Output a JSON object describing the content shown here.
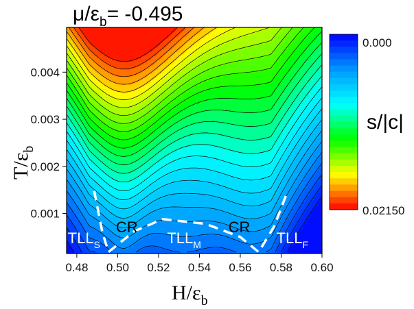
{
  "chart_data": {
    "type": "heatmap",
    "title": {
      "symbol": "μ/ε",
      "subscript": "b",
      "value": "= -0.495"
    },
    "xlabel": {
      "main": "H/ε",
      "subscript": "b"
    },
    "ylabel": {
      "main": "T/ε",
      "subscript": "b"
    },
    "xlim": [
      0.475,
      0.6
    ],
    "ylim": [
      0.00015,
      0.00495
    ],
    "x_ticks": [
      0.48,
      0.5,
      0.52,
      0.54,
      0.56,
      0.58,
      0.6
    ],
    "x_tick_labels": [
      "0.48",
      "0.50",
      "0.52",
      "0.54",
      "0.56",
      "0.58",
      "0.60"
    ],
    "y_ticks": [
      0.001,
      0.002,
      0.003,
      0.004
    ],
    "y_tick_labels": [
      "0.001",
      "0.002",
      "0.003",
      "0.004"
    ],
    "colorbar": {
      "label": "s/|c|",
      "min": 0.0,
      "max": 0.0215,
      "min_label": "0.000",
      "max_label": "0.02150",
      "levels": 28,
      "colors_top_to_bottom": [
        "#0000ff",
        "#0096ff",
        "#00ffff",
        "#00ff00",
        "#ffff00",
        "#ff0000"
      ]
    },
    "critical_fields": {
      "Hc1": 0.4955,
      "Hc2": 0.569
    },
    "crossover_boundary": [
      [
        0.4885,
        0.00148
      ],
      [
        0.4925,
        0.0006
      ],
      [
        0.4955,
        0.00018
      ],
      [
        0.508,
        0.00062
      ],
      [
        0.522,
        0.00088
      ],
      [
        0.543,
        0.00078
      ],
      [
        0.56,
        0.0005
      ],
      [
        0.569,
        0.00018
      ],
      [
        0.5765,
        0.00072
      ],
      [
        0.583,
        0.00145
      ]
    ],
    "annotations": [
      {
        "main": "TLL",
        "subscript": "S",
        "x": 0.4835,
        "y": 0.00037,
        "color": "white"
      },
      {
        "main": "CR",
        "subscript": "",
        "x": 0.5045,
        "y": 0.0006,
        "color": "black"
      },
      {
        "main": "TLL",
        "subscript": "M",
        "x": 0.5325,
        "y": 0.00037,
        "color": "white"
      },
      {
        "main": "CR",
        "subscript": "",
        "x": 0.5595,
        "y": 0.0006,
        "color": "black"
      },
      {
        "main": "TLL",
        "subscript": "F",
        "x": 0.5855,
        "y": 0.00037,
        "color": "white"
      }
    ]
  }
}
